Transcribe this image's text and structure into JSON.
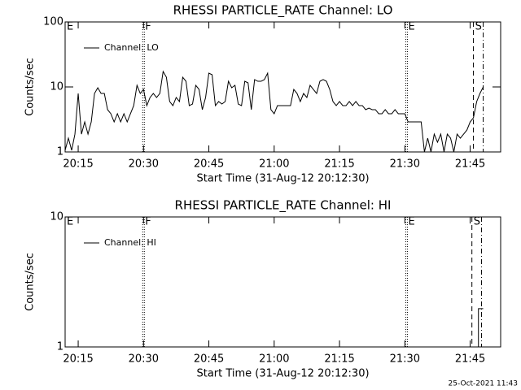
{
  "chart_data": [
    {
      "type": "line",
      "title": "RHESSI PARTICLE_RATE Channel: LO",
      "xlabel": "Start Time (31-Aug-12 20:12:30)",
      "ylabel": "Counts/sec",
      "log_y": true,
      "legend": "top-left",
      "xlim": [
        1212,
        1312
      ],
      "ylim": [
        1,
        100
      ],
      "xticks": [
        {
          "value": 1215,
          "label": "20:15"
        },
        {
          "value": 1230,
          "label": "20:30"
        },
        {
          "value": 1245,
          "label": "20:45"
        },
        {
          "value": 1260,
          "label": "21:00"
        },
        {
          "value": 1275,
          "label": "21:15"
        },
        {
          "value": 1290,
          "label": "21:30"
        },
        {
          "value": 1305,
          "label": "21:45"
        }
      ],
      "yticks": [
        1,
        10,
        100
      ],
      "flags": [
        {
          "x": 1212,
          "label": "E",
          "style": "none"
        },
        {
          "x": 1230,
          "label": "F",
          "style": "dotted"
        },
        {
          "x": 1290.4,
          "label": "E",
          "style": "dotted"
        },
        {
          "x": 1305.75,
          "label": "S",
          "style": "dashed"
        },
        {
          "x": 1308,
          "style": "dashdot"
        }
      ],
      "x": [
        1212,
        1212.75,
        1213.5,
        1214.25,
        1215,
        1215.75,
        1216.5,
        1217.25,
        1218,
        1218.75,
        1219.5,
        1220.25,
        1221,
        1221.75,
        1222.5,
        1223.25,
        1224,
        1224.75,
        1225.5,
        1226.25,
        1227,
        1227.75,
        1228.5,
        1229.25,
        1230,
        1230.75,
        1231.5,
        1232.25,
        1233,
        1233.75,
        1234.5,
        1235.25,
        1236,
        1236.75,
        1237.5,
        1238.25,
        1239,
        1239.75,
        1240.5,
        1241.25,
        1242,
        1242.75,
        1243.5,
        1244.25,
        1245,
        1245.75,
        1246.5,
        1247.25,
        1248,
        1248.75,
        1249.5,
        1250.25,
        1251,
        1251.75,
        1252.5,
        1253.25,
        1254,
        1254.75,
        1255.5,
        1256.25,
        1257,
        1257.75,
        1258.5,
        1259.25,
        1260,
        1260.75,
        1261.5,
        1262.25,
        1263,
        1263.75,
        1264.5,
        1265.25,
        1266,
        1266.75,
        1267.5,
        1268.25,
        1269,
        1269.75,
        1270.5,
        1271.25,
        1272,
        1272.75,
        1273.5,
        1274.25,
        1275,
        1275.75,
        1276.5,
        1277.25,
        1278,
        1278.75,
        1279.5,
        1280.25,
        1281,
        1281.75,
        1282.5,
        1283.25,
        1284,
        1284.75,
        1285.5,
        1286.25,
        1287,
        1287.75,
        1288.5,
        1289.25,
        1290,
        1290.75,
        1291.5,
        1292.25,
        1293,
        1293.75,
        1294.5,
        1295.25,
        1296,
        1296.75,
        1297.5,
        1298.25,
        1299,
        1299.75,
        1300.5,
        1301.25,
        1302,
        1302.75,
        1303.5,
        1304.25,
        1305,
        1305.75,
        1306.5,
        1307.25,
        1308
      ],
      "series": [
        {
          "name": "Channel: LO",
          "color": "#000000",
          "values": [
            1.06,
            1.63,
            1.06,
            1.88,
            7.94,
            1.88,
            2.9,
            1.88,
            2.9,
            7.94,
            9.71,
            7.94,
            7.94,
            4.47,
            3.87,
            2.9,
            3.87,
            2.9,
            3.87,
            2.9,
            3.87,
            5.16,
            10.59,
            7.94,
            9.17,
            5.16,
            6.88,
            7.94,
            6.88,
            7.94,
            17.3,
            14.1,
            5.96,
            5.16,
            6.88,
            5.96,
            14.1,
            12.23,
            5.16,
            5.46,
            10.59,
            9.17,
            4.47,
            6.88,
            16.3,
            15.4,
            5.16,
            5.96,
            5.46,
            5.96,
            12.23,
            9.71,
            10.59,
            5.46,
            5.16,
            12.23,
            11.55,
            4.47,
            12.96,
            12.23,
            12.23,
            12.96,
            16.3,
            4.47,
            3.87,
            5.16,
            5.16,
            5.16,
            5.16,
            5.16,
            9.17,
            7.94,
            5.96,
            7.94,
            6.88,
            10.59,
            9.17,
            7.94,
            12.23,
            12.96,
            12.23,
            9.17,
            5.96,
            5.16,
            5.96,
            5.16,
            5.16,
            5.96,
            5.16,
            5.96,
            5.16,
            5.16,
            4.47,
            4.73,
            4.47,
            4.47,
            3.87,
            3.87,
            4.47,
            3.87,
            3.87,
            4.47,
            3.87,
            3.87,
            3.87,
            2.9,
            2.9,
            2.9,
            2.9,
            2.9,
            1,
            1.63,
            1,
            1.88,
            1.41,
            1.88,
            1,
            1.88,
            1.63,
            1,
            1.88,
            1.63,
            1.88,
            2.17,
            2.9,
            3.35,
            5.96,
            7.94,
            10
          ]
        }
      ]
    },
    {
      "type": "line",
      "title": "RHESSI PARTICLE_RATE Channel: HI",
      "xlabel": "Start Time (31-Aug-12 20:12:30)",
      "ylabel": "Counts/sec",
      "log_y": true,
      "legend": "top-left",
      "xlim": [
        1212,
        1312
      ],
      "ylim": [
        1,
        10
      ],
      "xticks": [
        {
          "value": 1215,
          "label": "20:15"
        },
        {
          "value": 1230,
          "label": "20:30"
        },
        {
          "value": 1245,
          "label": "20:45"
        },
        {
          "value": 1260,
          "label": "21:00"
        },
        {
          "value": 1275,
          "label": "21:15"
        },
        {
          "value": 1290,
          "label": "21:30"
        },
        {
          "value": 1305,
          "label": "21:45"
        }
      ],
      "yticks": [
        1,
        10
      ],
      "flags": [
        {
          "x": 1212,
          "label": "E",
          "style": "none"
        },
        {
          "x": 1230,
          "label": "F",
          "style": "dotted"
        },
        {
          "x": 1290.4,
          "label": "E",
          "style": "dotted"
        },
        {
          "x": 1305.4,
          "label": "S",
          "style": "dashed"
        },
        {
          "x": 1307.6,
          "style": "dashdot"
        }
      ],
      "x": [
        1305.75,
        1306.9,
        1306.9,
        1308
      ],
      "series": [
        {
          "name": "Channel: HI",
          "color": "#000000",
          "values": [
            1,
            1,
            1.97,
            1.97
          ]
        }
      ]
    }
  ],
  "footer": "25-Oct-2021 11:43"
}
